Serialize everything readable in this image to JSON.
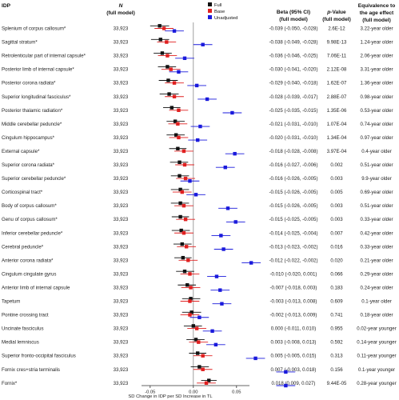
{
  "chart_data": {
    "type": "forest",
    "headers": {
      "idp": "IDP",
      "n_title": "N",
      "n_sub": "(full model)",
      "beta_title": "Beta (95% CI)",
      "beta_sub": "(full model)",
      "p_title_italic": "p",
      "p_title_rest": "-Value",
      "p_sub": "(full model)",
      "age_line1": "Equivalence to",
      "age_line2": "the age effect",
      "age_line3": "(full model)"
    },
    "legend": [
      "Full",
      "Base",
      "Unadjusted"
    ],
    "legend_position": "top-right of plot",
    "colors": {
      "Full": "#111111",
      "Base": "#e02020",
      "Unadjusted": "#1a1adc",
      "zero_line": "#8a8a8a"
    },
    "xlabel": "SD Change in IDP per SD Increase in TL",
    "xlim": [
      -0.06,
      0.065
    ],
    "xticks": [
      "-0.05",
      "0.00",
      "0.05"
    ],
    "xtick_values": [
      -0.05,
      0.0,
      0.05
    ],
    "rows": [
      {
        "idp": "Splenium of corpus callosum*",
        "n": "33,923",
        "beta": "-0.039 (-0.050, -0.028)",
        "p": "2.6E-12",
        "age": "3.22-year older",
        "full": [
          -0.039,
          -0.05,
          -0.028
        ],
        "base": [
          -0.034,
          -0.045,
          -0.023
        ],
        "unadj": [
          -0.022,
          -0.033,
          -0.011
        ]
      },
      {
        "idp": "Sagittal stratum*",
        "n": "33,923",
        "beta": "-0.038 (-0.049, -0.028)",
        "p": "9.98E-13",
        "age": "1.24-year older",
        "full": [
          -0.038,
          -0.049,
          -0.028
        ],
        "base": [
          -0.031,
          -0.042,
          -0.02
        ],
        "unadj": [
          0.011,
          0.0,
          0.022
        ]
      },
      {
        "idp": "Retrolenticular part of internal capsule*",
        "n": "33,923",
        "beta": "-0.036 (-0.046, -0.025)",
        "p": "7.06E-11",
        "age": "2.06-year older",
        "full": [
          -0.036,
          -0.046,
          -0.025
        ],
        "base": [
          -0.03,
          -0.041,
          -0.019
        ],
        "unadj": [
          -0.01,
          -0.021,
          0.001
        ]
      },
      {
        "idp": "Posterior limb of internal capsule*",
        "n": "33,923",
        "beta": "-0.030 (-0.041, -0.020)",
        "p": "2.12E-08",
        "age": "3.31-year older",
        "full": [
          -0.03,
          -0.041,
          -0.02
        ],
        "base": [
          -0.026,
          -0.037,
          -0.015
        ],
        "unadj": [
          -0.017,
          -0.028,
          -0.006
        ]
      },
      {
        "idp": "Posterior corona radiata*",
        "n": "33,923",
        "beta": "-0.029 (-0.040, -0.018)",
        "p": "1.62E-07",
        "age": "1.36-year older",
        "full": [
          -0.029,
          -0.04,
          -0.018
        ],
        "base": [
          -0.022,
          -0.033,
          -0.011
        ],
        "unadj": [
          0.004,
          -0.007,
          0.015
        ]
      },
      {
        "idp": "Superior longitudinal fasciculus*",
        "n": "33,923",
        "beta": "-0.028 (-0.039, -0.017)",
        "p": "2.88E-07",
        "age": "0.98-year older",
        "full": [
          -0.028,
          -0.039,
          -0.017
        ],
        "base": [
          -0.022,
          -0.033,
          -0.011
        ],
        "unadj": [
          0.016,
          0.005,
          0.027
        ]
      },
      {
        "idp": "Posterior thalamic radiation*",
        "n": "33,923",
        "beta": "-0.025 (-0.035, -0.015)",
        "p": "1.35E-06",
        "age": "0.53-year older",
        "full": [
          -0.025,
          -0.035,
          -0.015
        ],
        "base": [
          -0.017,
          -0.028,
          -0.006
        ],
        "unadj": [
          0.045,
          0.034,
          0.056
        ]
      },
      {
        "idp": "Middle cerebellar peduncle*",
        "n": "33,923",
        "beta": "-0.021 (-0.031, -0.010)",
        "p": "1.07E-04",
        "age": "0.74-year older",
        "full": [
          -0.021,
          -0.031,
          -0.01
        ],
        "base": [
          -0.018,
          -0.029,
          -0.007
        ],
        "unadj": [
          0.008,
          -0.003,
          0.019
        ]
      },
      {
        "idp": "Cingulum hippocampus*",
        "n": "33,923",
        "beta": "-0.020 (-0.031, -0.010)",
        "p": "1.34E-04",
        "age": "0.97-year older",
        "full": [
          -0.02,
          -0.031,
          -0.01
        ],
        "base": [
          -0.017,
          -0.028,
          -0.006
        ],
        "unadj": [
          0.005,
          -0.006,
          0.016
        ]
      },
      {
        "idp": "External capsule*",
        "n": "33,923",
        "beta": "-0.018 (-0.028, -0.008)",
        "p": "3.97E-04",
        "age": "0.4-year older",
        "full": [
          -0.018,
          -0.028,
          -0.008
        ],
        "base": [
          -0.011,
          -0.022,
          0.0
        ],
        "unadj": [
          0.048,
          0.037,
          0.059
        ]
      },
      {
        "idp": "Superior corona radiata*",
        "n": "33,923",
        "beta": "-0.016 (-0.027, -0.006)",
        "p": "0.002",
        "age": "0.51-year older",
        "full": [
          -0.016,
          -0.027,
          -0.006
        ],
        "base": [
          -0.01,
          -0.021,
          0.001
        ],
        "unadj": [
          0.037,
          0.026,
          0.048
        ]
      },
      {
        "idp": "Superior cerebellar peduncle*",
        "n": "33,923",
        "beta": "-0.016 (-0.026, -0.005)",
        "p": "0.003",
        "age": "9.9-year older",
        "full": [
          -0.016,
          -0.026,
          -0.005
        ],
        "base": [
          -0.009,
          -0.02,
          0.002
        ],
        "unadj": [
          -0.004,
          -0.015,
          0.007
        ]
      },
      {
        "idp": "Corticospinal tract*",
        "n": "33,923",
        "beta": "-0.015 (-0.026, -0.005)",
        "p": "0.005",
        "age": "0.69-year older",
        "full": [
          -0.015,
          -0.026,
          -0.005
        ],
        "base": [
          -0.013,
          -0.024,
          -0.002
        ],
        "unadj": [
          0.003,
          -0.008,
          0.014
        ]
      },
      {
        "idp": "Body of corpus callosum*",
        "n": "33,923",
        "beta": "-0.015 (-0.026, -0.005)",
        "p": "0.003",
        "age": "0.51-year older",
        "full": [
          -0.015,
          -0.026,
          -0.005
        ],
        "base": [
          -0.011,
          -0.022,
          0.0
        ],
        "unadj": [
          0.04,
          0.029,
          0.051
        ]
      },
      {
        "idp": "Genu of corpus callosum*",
        "n": "33,923",
        "beta": "-0.015 (-0.025, -0.005)",
        "p": "0.003",
        "age": "0.33-year older",
        "full": [
          -0.015,
          -0.025,
          -0.005
        ],
        "base": [
          -0.009,
          -0.02,
          0.002
        ],
        "unadj": [
          0.049,
          0.038,
          0.06
        ]
      },
      {
        "idp": "Inferior cerebellar peduncle*",
        "n": "33,923",
        "beta": "-0.014 (-0.025, -0.004)",
        "p": "0.007",
        "age": "0.42-year older",
        "full": [
          -0.014,
          -0.025,
          -0.004
        ],
        "base": [
          -0.011,
          -0.022,
          0.0
        ],
        "unadj": [
          0.032,
          0.021,
          0.043
        ]
      },
      {
        "idp": "Cerebral peduncle*",
        "n": "33,923",
        "beta": "-0.013 (-0.023, -0.002)",
        "p": "0.016",
        "age": "0.33-year older",
        "full": [
          -0.013,
          -0.023,
          -0.002
        ],
        "base": [
          -0.008,
          -0.019,
          0.003
        ],
        "unadj": [
          0.035,
          0.024,
          0.046
        ]
      },
      {
        "idp": "Anterior corona radiata*",
        "n": "33,923",
        "beta": "-0.012 (-0.022, -0.002)",
        "p": "0.020",
        "age": "0.21-year older",
        "full": [
          -0.012,
          -0.022,
          -0.002
        ],
        "base": [
          -0.006,
          -0.017,
          0.005
        ],
        "unadj": [
          0.067,
          0.056,
          0.078
        ]
      },
      {
        "idp": "Cingulum cingulate gyrus",
        "n": "33,923",
        "beta": "-0.010 (-0.020, 0.001)",
        "p": "0.066",
        "age": "0.29-year older",
        "full": [
          -0.01,
          -0.02,
          0.001
        ],
        "base": [
          -0.004,
          -0.015,
          0.007
        ],
        "unadj": [
          0.027,
          0.016,
          0.038
        ]
      },
      {
        "idp": "Anterior limb of internal capsule",
        "n": "33,923",
        "beta": "-0.007 (-0.018, 0.003)",
        "p": "0.183",
        "age": "0.24-year older",
        "full": [
          -0.007,
          -0.018,
          0.003
        ],
        "base": [
          -0.003,
          -0.014,
          0.008
        ],
        "unadj": [
          0.031,
          0.02,
          0.042
        ]
      },
      {
        "idp": "Tapetum",
        "n": "33,923",
        "beta": "-0.003 (-0.013, 0.008)",
        "p": "0.609",
        "age": "0.1-year older",
        "full": [
          -0.003,
          -0.013,
          0.008
        ],
        "base": [
          -0.004,
          -0.015,
          0.007
        ],
        "unadj": [
          0.033,
          0.022,
          0.044
        ]
      },
      {
        "idp": "Pontine crossing tract",
        "n": "33,923",
        "beta": "-0.002 (-0.013, 0.009)",
        "p": "0.741",
        "age": "0.18-year older",
        "full": [
          -0.002,
          -0.013,
          0.009
        ],
        "base": [
          -0.004,
          -0.015,
          0.007
        ],
        "unadj": [
          0.007,
          -0.004,
          0.018
        ]
      },
      {
        "idp": "Uncinate fasciculus",
        "n": "33,923",
        "beta": "0.000 (-0.011, 0.010)",
        "p": "0.955",
        "age": "0.02-year younger",
        "full": [
          0.0,
          -0.011,
          0.01
        ],
        "base": [
          0.004,
          -0.007,
          0.015
        ],
        "unadj": [
          0.022,
          0.011,
          0.033
        ]
      },
      {
        "idp": "Medial lemniscus",
        "n": "33,923",
        "beta": "0.003 (-0.008, 0.013)",
        "p": "0.592",
        "age": "0.14-year younger",
        "full": [
          0.003,
          -0.008,
          0.013
        ],
        "base": [
          0.006,
          -0.005,
          0.017
        ],
        "unadj": [
          0.026,
          0.015,
          0.037
        ]
      },
      {
        "idp": "Superior fronto-occipital fasciculus",
        "n": "33,923",
        "beta": "0.005 (-0.005, 0.015)",
        "p": "0.313",
        "age": "0.11-year younger",
        "full": [
          0.005,
          -0.005,
          0.015
        ],
        "base": [
          0.011,
          0.0,
          0.022
        ],
        "unadj": [
          0.072,
          0.061,
          0.083
        ]
      },
      {
        "idp": "Fornix cres+stria terminalis",
        "n": "33,923",
        "beta": "0.007 (-0.003, 0.018)",
        "p": "0.156",
        "age": "0.1-year younger",
        "full": [
          0.007,
          -0.003,
          0.018
        ],
        "base": [
          0.011,
          0.0,
          0.022
        ],
        "unadj": [
          0.107,
          0.096,
          0.118
        ]
      },
      {
        "idp": "Fornix*",
        "n": "33,923",
        "beta": "0.018 (0.009, 0.027)",
        "p": "9.44E-05",
        "age": "0.28-year younger",
        "full": [
          0.018,
          0.009,
          0.027
        ],
        "base": [
          0.015,
          0.004,
          0.026
        ],
        "unadj": [
          0.107,
          0.096,
          0.118
        ]
      }
    ]
  }
}
